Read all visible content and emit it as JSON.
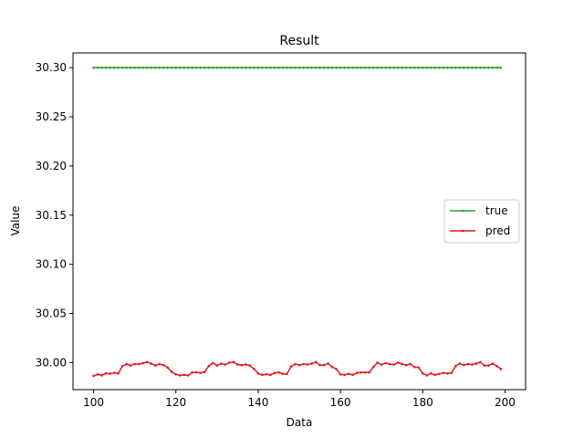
{
  "chart_data": {
    "type": "line",
    "title": "Result",
    "xlabel": "Data",
    "ylabel": "Value",
    "xlim": [
      95,
      205
    ],
    "ylim": [
      29.9725,
      30.315
    ],
    "xticks": [
      100,
      120,
      140,
      160,
      180,
      200
    ],
    "xtick_labels": [
      "100",
      "120",
      "140",
      "160",
      "180",
      "200"
    ],
    "yticks": [
      30.0,
      30.05,
      30.1,
      30.15,
      30.2,
      30.25,
      30.3
    ],
    "ytick_labels": [
      "30.00",
      "30.05",
      "30.10",
      "30.15",
      "30.20",
      "30.25",
      "30.30"
    ],
    "grid": false,
    "legend_position": "center-right",
    "x_range": [
      100,
      199
    ],
    "series": [
      {
        "name": "true",
        "color": "#2ca02c",
        "values": [
          30.3,
          30.3,
          30.3,
          30.3,
          30.3,
          30.3,
          30.3,
          30.3,
          30.3,
          30.3,
          30.3,
          30.3,
          30.3,
          30.3,
          30.3,
          30.3,
          30.3,
          30.3,
          30.3,
          30.3,
          30.3,
          30.3,
          30.3,
          30.3,
          30.3,
          30.3,
          30.3,
          30.3,
          30.3,
          30.3,
          30.3,
          30.3,
          30.3,
          30.3,
          30.3,
          30.3,
          30.3,
          30.3,
          30.3,
          30.3,
          30.3,
          30.3,
          30.3,
          30.3,
          30.3,
          30.3,
          30.3,
          30.3,
          30.3,
          30.3,
          30.3,
          30.3,
          30.3,
          30.3,
          30.3,
          30.3,
          30.3,
          30.3,
          30.3,
          30.3,
          30.3,
          30.3,
          30.3,
          30.3,
          30.3,
          30.3,
          30.3,
          30.3,
          30.3,
          30.3,
          30.3,
          30.3,
          30.3,
          30.3,
          30.3,
          30.3,
          30.3,
          30.3,
          30.3,
          30.3,
          30.3,
          30.3,
          30.3,
          30.3,
          30.3,
          30.3,
          30.3,
          30.3,
          30.3,
          30.3,
          30.3,
          30.3,
          30.3,
          30.3,
          30.3,
          30.3,
          30.3,
          30.3,
          30.3,
          30.3
        ]
      },
      {
        "name": "pred",
        "color": "#e31a1c",
        "values": [
          29.9865,
          29.988,
          29.987,
          29.989,
          29.9888,
          29.9895,
          29.989,
          29.9965,
          29.9985,
          29.997,
          29.9985,
          29.9985,
          29.9995,
          30.0005,
          29.999,
          29.997,
          29.9985,
          29.9975,
          29.995,
          29.9905,
          29.988,
          29.987,
          29.9875,
          29.987,
          29.99,
          29.99,
          29.9895,
          29.9905,
          29.9965,
          29.9995,
          29.997,
          29.999,
          29.998,
          30.0,
          30.0005,
          29.998,
          29.9975,
          29.998,
          29.997,
          29.9935,
          29.989,
          29.9875,
          29.988,
          29.9875,
          29.9895,
          29.99,
          29.9885,
          29.9885,
          29.996,
          29.9985,
          29.9975,
          29.9985,
          29.998,
          29.999,
          30.0005,
          29.9975,
          29.9975,
          29.999,
          29.9955,
          29.9935,
          29.988,
          29.9875,
          29.9885,
          29.9875,
          29.9895,
          29.99,
          29.99,
          29.99,
          29.9955,
          30.0,
          29.998,
          29.9995,
          29.9985,
          29.998,
          30.0,
          29.9985,
          29.9975,
          29.9985,
          29.9955,
          29.995,
          29.989,
          29.987,
          29.989,
          29.9875,
          29.9885,
          29.9895,
          29.989,
          29.9895,
          29.9965,
          29.999,
          29.9975,
          29.9985,
          29.998,
          29.999,
          30.0005,
          29.997,
          29.997,
          29.999,
          29.9965,
          29.9935
        ]
      }
    ]
  }
}
